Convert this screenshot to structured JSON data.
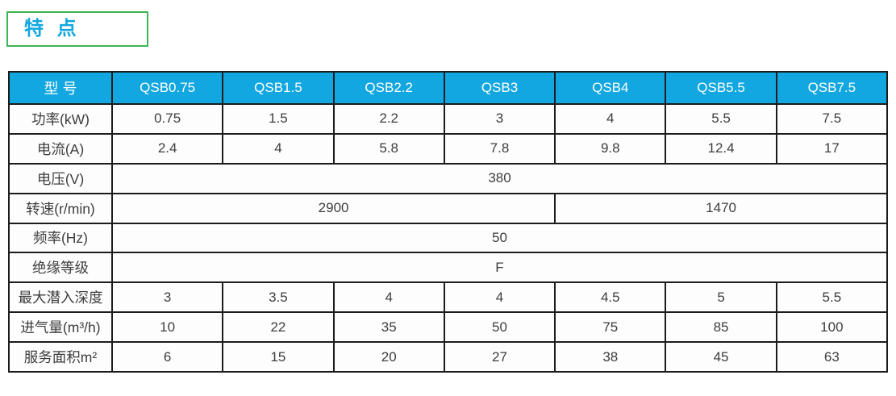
{
  "colors": {
    "header_bg": "#12a7e0",
    "title_text": "#1ba7e0",
    "title_border": "#3db554",
    "table_border": "#1c1c1a",
    "body_text": "#3d3d3d",
    "header_text": "#ffffff"
  },
  "title_box": {
    "text": "特 点"
  },
  "table": {
    "header": {
      "label": "型 号",
      "models": [
        "QSB0.75",
        "QSB1.5",
        "QSB2.2",
        "QSB3",
        "QSB4",
        "QSB5.5",
        "QSB7.5"
      ]
    },
    "rows": [
      {
        "label": "功率(kW)",
        "values": [
          "0.75",
          "1.5",
          "2.2",
          "3",
          "4",
          "5.5",
          "7.5"
        ]
      },
      {
        "label": "电流(A)",
        "values": [
          "2.4",
          "4",
          "5.8",
          "7.8",
          "9.8",
          "12.4",
          "17"
        ]
      },
      {
        "label": "电压(V)",
        "segments": [
          {
            "span": 7,
            "value": "380"
          }
        ]
      },
      {
        "label": "转速(r/min)",
        "segments": [
          {
            "span": 4,
            "value": "2900"
          },
          {
            "span": 3,
            "value": "1470"
          }
        ]
      },
      {
        "label": "频率(Hz)",
        "segments": [
          {
            "span": 7,
            "value": "50"
          }
        ]
      },
      {
        "label": "绝缘等级",
        "segments": [
          {
            "span": 7,
            "value": "F"
          }
        ]
      },
      {
        "label": "最大潜入深度",
        "values": [
          "3",
          "3.5",
          "4",
          "4",
          "4.5",
          "5",
          "5.5"
        ]
      },
      {
        "label": "进气量(m³/h)",
        "values": [
          "10",
          "22",
          "35",
          "50",
          "75",
          "85",
          "100"
        ]
      },
      {
        "label": "服务面积m²",
        "values": [
          "6",
          "15",
          "20",
          "27",
          "38",
          "45",
          "63"
        ]
      }
    ]
  }
}
